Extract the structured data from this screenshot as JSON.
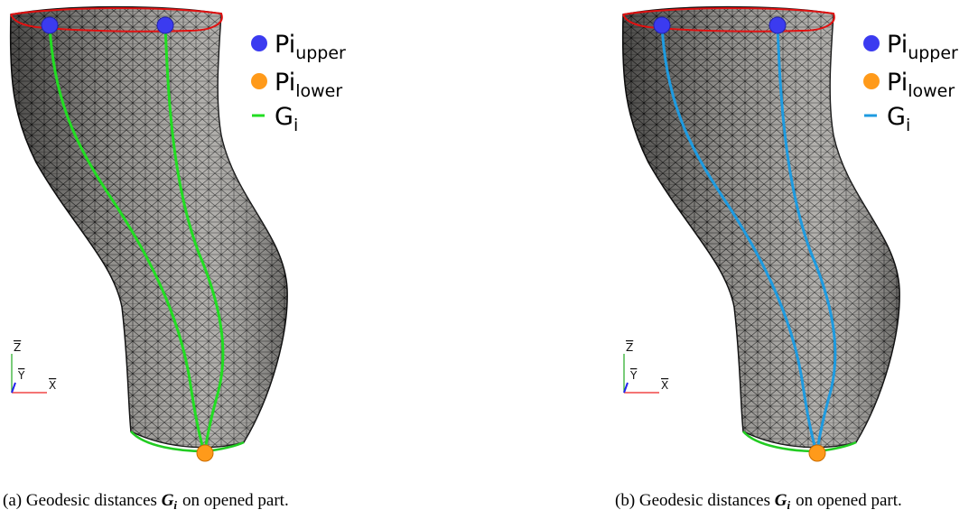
{
  "panels": [
    {
      "curve_color": "#22dd22",
      "legend": [
        {
          "base": "Pi",
          "sub": "upper"
        },
        {
          "base": "Pi",
          "sub": "lower"
        },
        {
          "base": "G",
          "sub": "i"
        }
      ],
      "axes": {
        "z": "Z",
        "y": "Y",
        "x": "X"
      },
      "caption": {
        "label": "(a)",
        "before": "Geodesic distances",
        "symbol": "G",
        "sub": "i",
        "after": "on opened part."
      }
    },
    {
      "curve_color": "#1e9be0",
      "legend": [
        {
          "base": "Pi",
          "sub": "upper"
        },
        {
          "base": "Pi",
          "sub": "lower"
        },
        {
          "base": "G",
          "sub": "i"
        }
      ],
      "axes": {
        "z": "Z",
        "y": "Y",
        "x": "X"
      },
      "caption": {
        "label": "(b)",
        "before": "Geodesic distances",
        "symbol": "G",
        "sub": "i",
        "after": "on opened part."
      }
    }
  ]
}
